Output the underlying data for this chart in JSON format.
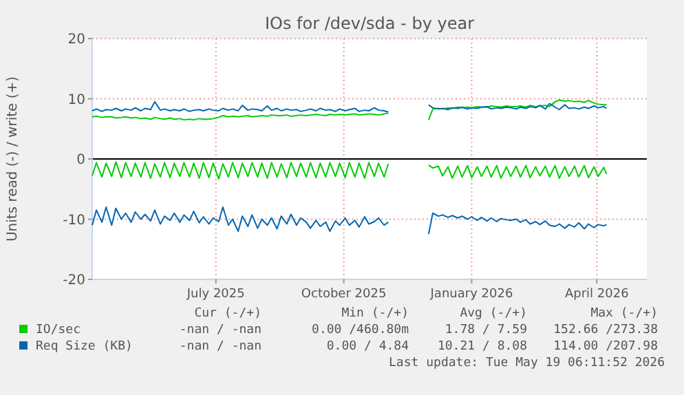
{
  "chart_data": {
    "type": "line",
    "title": "IOs for /dev/sda - by year",
    "ylabel": "Units read (-) / write (+)",
    "x": [
      "2025-04-03",
      "2025-04-06",
      "2025-04-10",
      "2025-04-13",
      "2025-04-17",
      "2025-04-20",
      "2025-04-24",
      "2025-04-27",
      "2025-05-01",
      "2025-05-04",
      "2025-05-08",
      "2025-05-11",
      "2025-05-15",
      "2025-05-18",
      "2025-05-22",
      "2025-05-25",
      "2025-05-29",
      "2025-06-01",
      "2025-06-05",
      "2025-06-08",
      "2025-06-12",
      "2025-06-15",
      "2025-06-19",
      "2025-06-22",
      "2025-06-26",
      "2025-06-29",
      "2025-07-03",
      "2025-07-06",
      "2025-07-10",
      "2025-07-13",
      "2025-07-17",
      "2025-07-20",
      "2025-07-24",
      "2025-07-27",
      "2025-07-31",
      "2025-08-03",
      "2025-08-07",
      "2025-08-10",
      "2025-08-14",
      "2025-08-17",
      "2025-08-21",
      "2025-08-24",
      "2025-08-28",
      "2025-08-31",
      "2025-09-04",
      "2025-09-07",
      "2025-09-11",
      "2025-09-14",
      "2025-09-18",
      "2025-09-21",
      "2025-09-25",
      "2025-09-28",
      "2025-10-02",
      "2025-10-05",
      "2025-10-09",
      "2025-10-12",
      "2025-10-16",
      "2025-10-19",
      "2025-10-23",
      "2025-10-26",
      "2025-10-30",
      "2025-11-02",
      "2025-11-15",
      "2025-12-01",
      "2025-12-04",
      "2025-12-08",
      "2025-12-11",
      "2025-12-15",
      "2025-12-18",
      "2025-12-22",
      "2025-12-25",
      "2025-12-29",
      "2026-01-01",
      "2026-01-05",
      "2026-01-08",
      "2026-01-12",
      "2026-01-15",
      "2026-01-19",
      "2026-01-22",
      "2026-01-26",
      "2026-01-29",
      "2026-02-02",
      "2026-02-05",
      "2026-02-09",
      "2026-02-12",
      "2026-02-16",
      "2026-02-19",
      "2026-02-23",
      "2026-02-26",
      "2026-03-02",
      "2026-03-05",
      "2026-03-09",
      "2026-03-12",
      "2026-03-16",
      "2026-03-19",
      "2026-03-23",
      "2026-03-26",
      "2026-03-30",
      "2026-04-02",
      "2026-04-06",
      "2026-04-08"
    ],
    "series": [
      {
        "name": "IO/sec",
        "color": "#00cc00",
        "values": [
          7.0,
          7.1,
          6.9,
          7.0,
          7.0,
          6.8,
          6.9,
          7.0,
          6.8,
          6.9,
          6.7,
          6.8,
          6.6,
          6.9,
          6.7,
          6.6,
          6.8,
          6.6,
          6.7,
          6.5,
          6.6,
          6.5,
          6.7,
          6.6,
          6.6,
          6.7,
          6.9,
          7.2,
          7.0,
          7.1,
          7.0,
          7.1,
          7.2,
          7.0,
          7.1,
          7.2,
          7.1,
          7.3,
          7.2,
          7.2,
          7.3,
          7.1,
          7.2,
          7.3,
          7.2,
          7.3,
          7.4,
          7.3,
          7.2,
          7.4,
          7.3,
          7.4,
          7.3,
          7.4,
          7.5,
          7.3,
          7.4,
          7.5,
          7.4,
          7.3,
          7.5,
          7.6,
          null,
          6.5,
          8.3,
          8.4,
          8.3,
          8.5,
          8.4,
          8.6,
          8.5,
          8.6,
          8.5,
          8.7,
          8.6,
          8.6,
          8.8,
          8.7,
          8.6,
          8.8,
          8.7,
          8.7,
          8.8,
          8.6,
          8.9,
          8.7,
          8.8,
          8.9,
          8.7,
          9.5,
          9.8,
          9.6,
          9.7,
          9.5,
          9.6,
          9.4,
          9.7,
          9.3,
          9.1,
          9.0,
          9.0
        ]
      },
      {
        "color": "#00cc00",
        "values": [
          -2.8,
          -0.6,
          -3.0,
          -0.7,
          -2.9,
          -0.5,
          -3.1,
          -0.6,
          -2.9,
          -0.7,
          -3.0,
          -0.6,
          -3.2,
          -0.8,
          -3.0,
          -0.6,
          -3.1,
          -0.7,
          -2.9,
          -0.6,
          -3.0,
          -0.7,
          -3.2,
          -0.6,
          -3.1,
          -0.7,
          -3.3,
          -0.8,
          -3.0,
          -0.6,
          -3.1,
          -0.7,
          -2.9,
          -0.6,
          -3.0,
          -0.7,
          -3.2,
          -0.6,
          -3.0,
          -0.8,
          -3.1,
          -0.6,
          -2.9,
          -0.7,
          -3.0,
          -0.6,
          -3.1,
          -0.7,
          -3.0,
          -0.6,
          -2.9,
          -0.7,
          -3.1,
          -0.6,
          -3.0,
          -0.7,
          -3.2,
          -0.6,
          -2.9,
          -0.7,
          -3.0,
          -0.8,
          null,
          -1.0,
          -1.5,
          -1.2,
          -2.8,
          -1.3,
          -3.2,
          -1.2,
          -3.0,
          -1.1,
          -3.1,
          -1.3,
          -2.9,
          -1.2,
          -3.0,
          -1.1,
          -3.2,
          -1.3,
          -2.9,
          -1.2,
          -3.0,
          -1.1,
          -3.1,
          -1.3,
          -2.8,
          -1.2,
          -3.0,
          -1.1,
          -3.2,
          -1.3,
          -2.9,
          -1.2,
          -3.0,
          -1.1,
          -3.1,
          -1.3,
          -2.9,
          -1.4,
          -2.5
        ]
      },
      {
        "name": "Req Size (KB)",
        "color": "#0066b3",
        "values": [
          8.0,
          8.3,
          7.9,
          8.2,
          8.1,
          8.4,
          8.0,
          8.3,
          8.1,
          8.5,
          8.0,
          8.4,
          8.2,
          9.5,
          8.1,
          8.3,
          8.0,
          8.2,
          8.0,
          8.3,
          7.9,
          8.1,
          8.2,
          8.0,
          8.3,
          8.1,
          8.0,
          8.4,
          8.1,
          8.3,
          8.0,
          8.9,
          8.1,
          8.3,
          8.2,
          8.0,
          8.8,
          8.1,
          8.4,
          8.0,
          8.3,
          8.1,
          8.2,
          7.9,
          8.1,
          8.3,
          8.0,
          8.4,
          8.1,
          8.2,
          7.9,
          8.3,
          8.0,
          8.2,
          8.4,
          7.9,
          8.1,
          8.0,
          8.5,
          8.1,
          8.0,
          7.8,
          null,
          9.0,
          8.5,
          8.3,
          8.4,
          8.2,
          8.5,
          8.4,
          8.6,
          8.3,
          8.5,
          8.4,
          8.6,
          8.7,
          8.3,
          8.5,
          8.4,
          8.6,
          8.5,
          8.3,
          8.6,
          8.4,
          8.7,
          8.5,
          8.9,
          8.3,
          9.2,
          8.6,
          8.2,
          9.0,
          8.4,
          8.5,
          8.3,
          8.6,
          8.4,
          8.8,
          8.5,
          8.7,
          8.4
        ]
      },
      {
        "color": "#0066b3",
        "values": [
          -11.0,
          -8.5,
          -10.5,
          -8.0,
          -11.0,
          -8.2,
          -10.0,
          -9.0,
          -10.5,
          -8.8,
          -10.0,
          -9.2,
          -10.3,
          -8.5,
          -10.8,
          -9.5,
          -10.2,
          -9.0,
          -10.5,
          -9.3,
          -10.2,
          -8.7,
          -10.6,
          -9.6,
          -10.8,
          -9.8,
          -10.4,
          -8.0,
          -11.0,
          -10.0,
          -12.0,
          -9.5,
          -11.2,
          -9.3,
          -11.5,
          -10.0,
          -11.0,
          -9.8,
          -11.6,
          -9.5,
          -10.8,
          -9.2,
          -11.0,
          -9.8,
          -10.5,
          -11.5,
          -10.2,
          -11.2,
          -10.5,
          -12.0,
          -10.3,
          -11.0,
          -9.8,
          -11.0,
          -10.2,
          -11.3,
          -9.6,
          -10.8,
          -10.4,
          -9.8,
          -11.0,
          -10.5,
          null,
          -12.5,
          -9.0,
          -9.5,
          -9.3,
          -9.7,
          -9.4,
          -9.8,
          -9.5,
          -10.0,
          -9.6,
          -10.2,
          -9.7,
          -10.3,
          -9.8,
          -10.4,
          -9.9,
          -10.1,
          -10.2,
          -10.0,
          -10.5,
          -10.1,
          -10.8,
          -10.4,
          -10.9,
          -10.3,
          -11.0,
          -11.2,
          -10.8,
          -11.5,
          -10.9,
          -11.3,
          -10.6,
          -11.6,
          -10.8,
          -11.4,
          -10.9,
          -11.1,
          -10.9
        ]
      }
    ],
    "xlim": [
      "2025-04-03",
      "2026-05-07"
    ],
    "xticks": [
      {
        "value": "2025-07-01",
        "label": "July 2025"
      },
      {
        "value": "2025-10-01",
        "label": "October 2025"
      },
      {
        "value": "2026-01-01",
        "label": "January 2026"
      },
      {
        "value": "2026-04-01",
        "label": "April 2026"
      }
    ],
    "ylim": [
      -20,
      20
    ],
    "yticks": [
      -20,
      -10,
      0,
      10,
      20
    ],
    "grid": true,
    "legend": "bottom",
    "annotations": [
      "Cur (-/+)",
      "Min (-/+)",
      "Avg (-/+)",
      "Max (-/+)",
      "-nan / -nan",
      "0.00 /460.80m",
      "1.78 / 7.59",
      "152.66 /273.38",
      "-nan / -nan",
      "0.00 / 4.84",
      "10.21 / 8.08",
      "114.00 /207.98",
      "Last update: Tue May 19 06:11:52 2026"
    ]
  }
}
